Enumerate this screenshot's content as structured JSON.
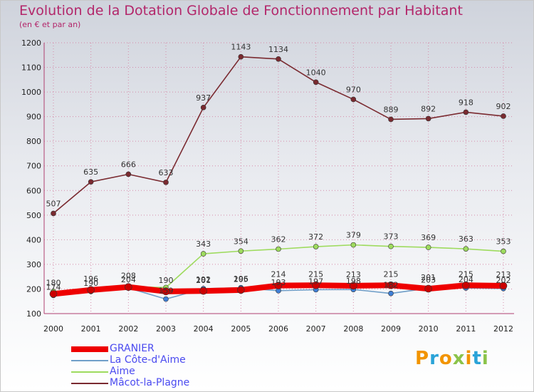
{
  "header": {
    "title": "Evolution de la Dotation Globale de Fonctionnement par Habitant",
    "subtitle": "(en € et par an)"
  },
  "colors": {
    "title": "#b3266a",
    "legend_text": "#4a4af0",
    "grid": "#d58aa8"
  },
  "chart_data": {
    "type": "line",
    "title": "Evolution de la Dotation Globale de Fonctionnement par Habitant",
    "subtitle": "(en € et par an)",
    "xlabel": "",
    "ylabel": "",
    "ylim": [
      100,
      1200
    ],
    "yticks": [
      100,
      200,
      300,
      400,
      500,
      600,
      700,
      800,
      900,
      1000,
      1100,
      1200
    ],
    "grid": true,
    "legend_position": "bottom-left",
    "x": [
      "2000",
      "2001",
      "2002",
      "2003",
      "2004",
      "2005",
      "2006",
      "2007",
      "2008",
      "2009",
      "2010",
      "2011",
      "2012"
    ],
    "series": [
      {
        "name": "Mâcot-la-Plagne",
        "color": "#7a2a30",
        "values": [
          507,
          635,
          666,
          633,
          937,
          1143,
          1134,
          1040,
          970,
          889,
          892,
          918,
          902
        ]
      },
      {
        "name": "Aime",
        "color": "#9edb5e",
        "values": [
          190,
          197,
          209,
          206,
          343,
          354,
          362,
          372,
          379,
          373,
          369,
          363,
          353
        ]
      },
      {
        "name": "La Côte-d'Aime",
        "color": "#6f9fc9",
        "values": [
          174,
          190,
          204,
          159,
          201,
          205,
          193,
          197,
          198,
          182,
          203,
          204,
          202
        ]
      },
      {
        "name": "GRANIER",
        "color": "#ee0000",
        "values": [
          180,
          196,
          208,
          190,
          192,
          196,
          214,
          215,
          213,
          215,
          201,
          215,
          213
        ]
      }
    ],
    "data_labels": [
      {
        "series": "Mâcot-la-Plagne",
        "labels": [
          "507",
          "635",
          "666",
          "633",
          "937",
          "1143",
          "1134",
          "1040",
          "970",
          "889",
          "892",
          "918",
          "902"
        ]
      },
      {
        "series": "Aime",
        "labels": [
          "",
          "",
          "",
          "",
          "343",
          "354",
          "362",
          "372",
          "379",
          "373",
          "369",
          "363",
          "353"
        ]
      },
      {
        "series": "La Côte-d'Aime",
        "labels": [
          "174",
          "190",
          "204",
          "159",
          "201",
          "205",
          "193",
          "197",
          "198",
          "182",
          "203",
          "204",
          "202"
        ]
      },
      {
        "series": "GRANIER",
        "labels": [
          "180",
          "196",
          "208",
          "190",
          "192",
          "196",
          "214",
          "215",
          "213",
          "215",
          "201",
          "215",
          "213"
        ]
      }
    ]
  },
  "legend": {
    "items": [
      {
        "label": "GRANIER",
        "color": "#ee0000",
        "thickness": 8
      },
      {
        "label": "La Côte-d'Aime",
        "color": "#6f9fc9",
        "thickness": 2
      },
      {
        "label": "Aime",
        "color": "#9edb5e",
        "thickness": 2
      },
      {
        "label": "Mâcot-la-Plagne",
        "color": "#7a2a30",
        "thickness": 2
      }
    ]
  },
  "logo": {
    "text": "Proxiti",
    "letter_colors": [
      "#f29400",
      "#2aa3d8",
      "#f29400",
      "#8bc34a",
      "#f29400",
      "#2aa3d8",
      "#8bc34a"
    ]
  }
}
